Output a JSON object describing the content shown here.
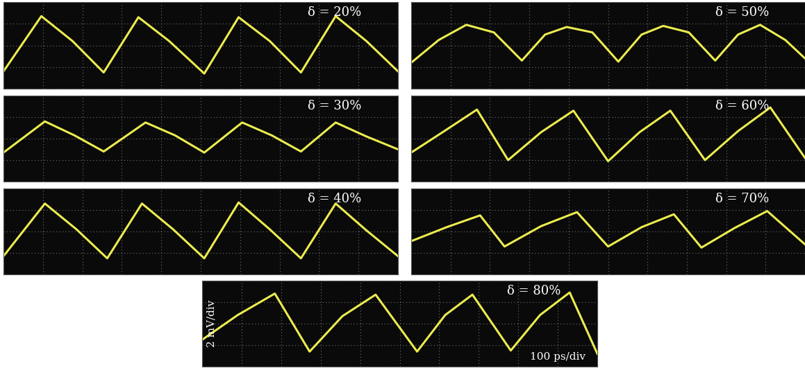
{
  "chart_data": [
    {
      "type": "line",
      "title": "δ = 20%",
      "x": [
        0,
        96,
        175,
        254,
        342,
        420,
        509,
        596,
        675,
        754,
        842,
        920,
        1000
      ],
      "values": [
        -2.4,
        2.7,
        0.4,
        -2.5,
        2.6,
        0.4,
        -2.6,
        2.6,
        0.4,
        -2.5,
        2.7,
        0.4,
        -2.4
      ],
      "color": "#ecec50",
      "xlim": [
        0,
        1000
      ],
      "ylim": [
        -4,
        4
      ],
      "xticks": [
        0,
        100,
        200,
        300,
        400,
        500,
        600,
        700,
        800,
        900,
        1000
      ],
      "yticks": [
        -4,
        -2,
        0,
        2,
        4
      ],
      "grid": true,
      "tick_labels": false
    },
    {
      "type": "line",
      "title": "δ = 30%",
      "x": [
        0,
        105,
        180,
        254,
        360,
        435,
        509,
        605,
        680,
        754,
        842,
        920,
        1000
      ],
      "values": [
        -1.3,
        1.6,
        0.3,
        -1.2,
        1.5,
        0.3,
        -1.3,
        1.5,
        0.3,
        -1.2,
        1.5,
        0.2,
        -1.0
      ],
      "color": "#ecec50",
      "xlim": [
        0,
        1000
      ],
      "ylim": [
        -4,
        4
      ],
      "xticks": [
        0,
        100,
        200,
        300,
        400,
        500,
        600,
        700,
        800,
        900,
        1000
      ],
      "yticks": [
        -4,
        -2,
        0,
        2,
        4
      ],
      "grid": true,
      "tick_labels": false
    },
    {
      "type": "line",
      "title": "δ = 40%",
      "x": [
        0,
        105,
        185,
        263,
        351,
        430,
        509,
        596,
        675,
        754,
        842,
        920,
        1000
      ],
      "values": [
        -2.3,
        2.6,
        0.2,
        -2.5,
        2.6,
        0.2,
        -2.5,
        2.7,
        0.2,
        -2.5,
        2.6,
        0.1,
        -2.3
      ],
      "color": "#ecec50",
      "xlim": [
        0,
        1000
      ],
      "ylim": [
        -4,
        4
      ],
      "xticks": [
        0,
        100,
        200,
        300,
        400,
        500,
        600,
        700,
        800,
        900,
        1000
      ],
      "yticks": [
        -4,
        -2,
        0,
        2,
        4
      ],
      "grid": true,
      "tick_labels": false
    },
    {
      "type": "line",
      "title": "δ = 50%",
      "x": [
        0,
        70,
        140,
        210,
        281,
        340,
        395,
        460,
        526,
        585,
        640,
        705,
        772,
        830,
        886,
        950,
        1000
      ],
      "values": [
        -1.6,
        0.5,
        1.9,
        1.2,
        -1.4,
        1.0,
        1.7,
        1.2,
        -1.5,
        1.0,
        1.8,
        1.2,
        -1.4,
        1.0,
        1.9,
        0.5,
        -1.2
      ],
      "color": "#ecec50",
      "xlim": [
        0,
        1000
      ],
      "ylim": [
        -4,
        4
      ],
      "xticks": [
        0,
        100,
        200,
        300,
        400,
        500,
        600,
        700,
        800,
        900,
        1000
      ],
      "yticks": [
        -4,
        -2,
        0,
        2,
        4
      ],
      "grid": true,
      "tick_labels": false
    },
    {
      "type": "line",
      "title": "δ = 60%",
      "x": [
        0,
        80,
        167,
        246,
        330,
        412,
        500,
        580,
        658,
        746,
        830,
        912,
        1000
      ],
      "values": [
        -1.3,
        0.6,
        2.7,
        -2.0,
        0.6,
        2.6,
        -2.1,
        0.6,
        2.6,
        -2.0,
        0.7,
        2.9,
        -1.8
      ],
      "color": "#ecec50",
      "xlim": [
        0,
        1000
      ],
      "ylim": [
        -4,
        4
      ],
      "xticks": [
        0,
        100,
        200,
        300,
        400,
        500,
        600,
        700,
        800,
        900,
        1000
      ],
      "yticks": [
        -4,
        -2,
        0,
        2,
        4
      ],
      "grid": true,
      "tick_labels": false
    },
    {
      "type": "line",
      "title": "δ = 70%",
      "x": [
        0,
        90,
        175,
        237,
        330,
        421,
        500,
        585,
        667,
        737,
        820,
        904,
        1000
      ],
      "values": [
        -0.9,
        0.4,
        1.5,
        -1.4,
        0.5,
        1.8,
        -1.4,
        0.4,
        1.6,
        -1.5,
        0.3,
        1.9,
        -1.2
      ],
      "color": "#ecec50",
      "xlim": [
        0,
        1000
      ],
      "ylim": [
        -4,
        4
      ],
      "xticks": [
        0,
        100,
        200,
        300,
        400,
        500,
        600,
        700,
        800,
        900,
        1000
      ],
      "yticks": [
        -4,
        -2,
        0,
        2,
        4
      ],
      "grid": true,
      "tick_labels": false
    },
    {
      "type": "line",
      "title": "δ = 80%",
      "xlabel": "100 ps/div",
      "ylabel": "2 mV/div",
      "x": [
        0,
        90,
        184,
        272,
        355,
        439,
        544,
        615,
        684,
        781,
        855,
        930,
        1000
      ],
      "values": [
        -1.5,
        0.8,
        2.8,
        -2.6,
        0.7,
        2.7,
        -2.6,
        0.8,
        2.7,
        -2.5,
        0.8,
        2.9,
        -2.8
      ],
      "color": "#ecec50",
      "xlim": [
        0,
        1000
      ],
      "ylim": [
        -4,
        4
      ],
      "xticks": [
        0,
        100,
        200,
        300,
        400,
        500,
        600,
        700,
        800,
        900,
        1000
      ],
      "yticks": [
        -4,
        -2,
        0,
        2,
        4
      ],
      "grid": true,
      "tick_labels": false
    }
  ]
}
